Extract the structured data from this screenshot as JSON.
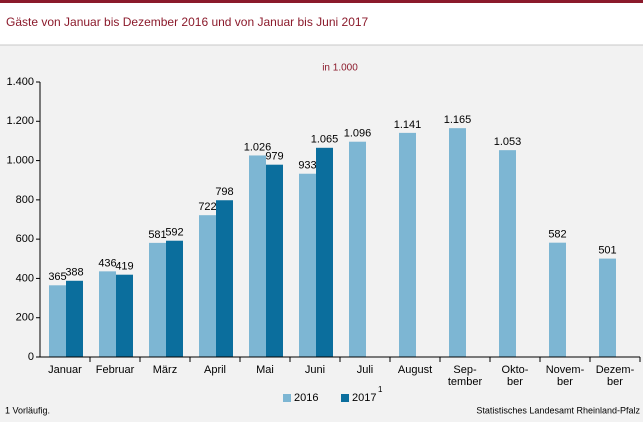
{
  "chart_data": {
    "type": "bar",
    "title": "Gäste von Januar bis Dezember 2016 und von Januar bis Juni 2017",
    "subtitle": "in 1.000",
    "categories": [
      "Januar",
      "Februar",
      "März",
      "April",
      "Mai",
      "Juni",
      "Juli",
      "August",
      "Sep-\ntember",
      "Okto-\nber",
      "Novem-\nber",
      "Dezem-\nber"
    ],
    "series": [
      {
        "name": "2016",
        "color": "#7db6d3",
        "values": [
          365,
          436,
          581,
          722,
          1026,
          933,
          1096,
          1141,
          1165,
          1053,
          582,
          501
        ],
        "value_labels": [
          "365",
          "436",
          "581",
          "722",
          "1.026",
          "933",
          "1.096",
          "1.141",
          "1.165",
          "1.053",
          "582",
          "501"
        ]
      },
      {
        "name": "2017",
        "color": "#0b6e9d",
        "legend_note": "1",
        "values": [
          388,
          419,
          592,
          798,
          979,
          1065,
          null,
          null,
          null,
          null,
          null,
          null
        ],
        "value_labels": [
          "388",
          "419",
          "592",
          "798",
          "979",
          "1.065",
          null,
          null,
          null,
          null,
          null,
          null
        ]
      }
    ],
    "ylim": [
      0,
      1400
    ],
    "yticks": [
      0,
      200,
      400,
      600,
      800,
      {
        "value": 1000,
        "label": "1.000"
      },
      {
        "value": 1200,
        "label": "1.200"
      },
      {
        "value": 1400,
        "label": "1.400"
      }
    ],
    "grid": false,
    "legend": "bottom",
    "footnote": "1 Vorläufig.",
    "source": "Statistisches Landesamt Rheinland-Pfalz"
  }
}
